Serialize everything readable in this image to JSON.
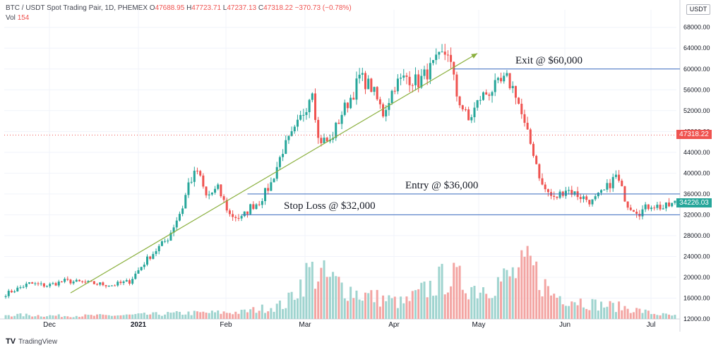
{
  "header": {
    "pair": "BTC / USDT Spot Trading Pair, 1D, PHEMEX",
    "open_label": "O",
    "open": "47688.95",
    "high_label": "H",
    "high": "47723.71",
    "low_label": "L",
    "low": "47237.13",
    "close_label": "C",
    "close": "47318.22",
    "change": "−370.73 (−0.78%)",
    "vol_label": "Vol",
    "vol": "154"
  },
  "currency": "USDT",
  "price_tags": {
    "current": "47318.22",
    "cursor": "34226.03"
  },
  "brand": {
    "logo": "TV",
    "name": "TradingView"
  },
  "colors": {
    "up": "#26a69a",
    "down": "#ef5350",
    "vol_up": "#9fd4cf",
    "vol_down": "#f3a5a3",
    "level": "#2962ff",
    "trend": "#8bb03f"
  },
  "chart_data": {
    "type": "candlestick",
    "x_ticks": [
      "Dec",
      "2021",
      "Feb",
      "Mar",
      "Apr",
      "May",
      "Jun",
      "Jul"
    ],
    "y_ticks": [
      "68000.00",
      "64000.00",
      "60000.00",
      "56000.00",
      "52000.00",
      "48000.00",
      "44000.00",
      "40000.00",
      "36000.00",
      "32000.00",
      "28000.00",
      "24000.00",
      "20000.00",
      "16000.00",
      "12000.00"
    ],
    "ylim": [
      12000,
      68000
    ],
    "close_path": [
      [
        0,
        16800
      ],
      [
        8,
        18800
      ],
      [
        14,
        18400
      ],
      [
        20,
        19300
      ],
      [
        28,
        18900
      ],
      [
        36,
        18500
      ],
      [
        42,
        19200
      ],
      [
        48,
        23500
      ],
      [
        55,
        27500
      ],
      [
        60,
        33500
      ],
      [
        62,
        38000
      ],
      [
        65,
        40500
      ],
      [
        68,
        35500
      ],
      [
        72,
        37000
      ],
      [
        76,
        32000
      ],
      [
        80,
        31300
      ],
      [
        83,
        33500
      ],
      [
        86,
        34500
      ],
      [
        90,
        38000
      ],
      [
        94,
        44500
      ],
      [
        98,
        48000
      ],
      [
        102,
        53000
      ],
      [
        104,
        56500
      ],
      [
        106,
        46500
      ],
      [
        110,
        46000
      ],
      [
        114,
        51500
      ],
      [
        118,
        55500
      ],
      [
        120,
        58500
      ],
      [
        124,
        56500
      ],
      [
        128,
        51500
      ],
      [
        132,
        57000
      ],
      [
        136,
        58500
      ],
      [
        140,
        57500
      ],
      [
        144,
        60000
      ],
      [
        148,
        62500
      ],
      [
        150,
        63500
      ],
      [
        153,
        55000
      ],
      [
        157,
        50000
      ],
      [
        161,
        54500
      ],
      [
        166,
        56500
      ],
      [
        170,
        58000
      ],
      [
        173,
        55500
      ],
      [
        176,
        49000
      ],
      [
        179,
        44000
      ],
      [
        182,
        37500
      ],
      [
        186,
        35000
      ],
      [
        190,
        37000
      ],
      [
        195,
        35500
      ],
      [
        199,
        34500
      ],
      [
        203,
        36500
      ],
      [
        207,
        39500
      ],
      [
        211,
        34000
      ],
      [
        215,
        32500
      ],
      [
        219,
        34000
      ],
      [
        223,
        33300
      ],
      [
        227,
        34226
      ]
    ],
    "volume_path": [
      [
        0,
        12800
      ],
      [
        20,
        12600
      ],
      [
        40,
        12700
      ],
      [
        60,
        13100
      ],
      [
        80,
        13300
      ],
      [
        95,
        14800
      ],
      [
        103,
        21200
      ],
      [
        110,
        19500
      ],
      [
        120,
        16800
      ],
      [
        135,
        15000
      ],
      [
        150,
        20200
      ],
      [
        160,
        17800
      ],
      [
        170,
        19800
      ],
      [
        178,
        22200
      ],
      [
        185,
        16800
      ],
      [
        200,
        14800
      ],
      [
        210,
        14200
      ],
      [
        220,
        13000
      ],
      [
        227,
        12600
      ]
    ],
    "levels": [
      {
        "label": "Exit @ $60,000",
        "value": 60000,
        "from": 152
      },
      {
        "label": "Entry @ $36,000",
        "value": 36000,
        "from": 82
      },
      {
        "label": "Stop Loss @ $32,000",
        "value": 32000,
        "from": 80
      }
    ],
    "trendline": {
      "from": [
        22,
        17000
      ],
      "to": [
        160,
        63000
      ]
    },
    "last_value": 47318.22,
    "cursor_value": 34226.03
  }
}
